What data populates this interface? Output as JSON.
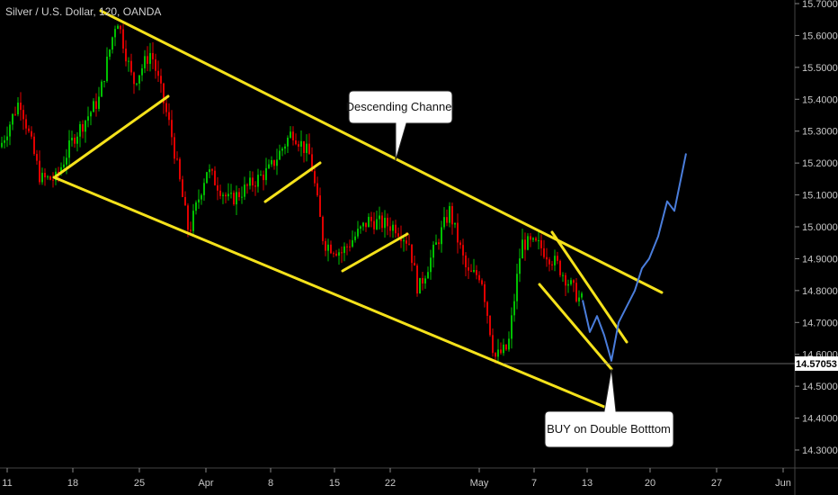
{
  "header": {
    "symbol": "Silver / U.S. Dollar, 120, OANDA"
  },
  "chart_data": {
    "type": "candlestick",
    "title": "Silver / U.S. Dollar, 120, OANDA",
    "y_axis_ticks": [
      "15.70000",
      "15.60000",
      "15.50000",
      "15.40000",
      "15.30000",
      "15.20000",
      "15.10000",
      "15.00000",
      "14.90000",
      "14.80000",
      "14.70000",
      "14.60000",
      "14.50000",
      "14.40000",
      "14.30000"
    ],
    "ylim": [
      14.26,
      15.73
    ],
    "x_axis_ticks": [
      "11",
      "18",
      "25",
      "Apr",
      "8",
      "15",
      "22",
      "May",
      "7",
      "13",
      "20",
      "27",
      "Jun"
    ],
    "current_price": "14.57053",
    "price_path": [
      {
        "x": "11",
        "y": 15.25
      },
      {
        "x": "13",
        "y": 15.4
      },
      {
        "x": "15",
        "y": 15.15
      },
      {
        "x": "18",
        "y": 15.28
      },
      {
        "x": "21",
        "y": 15.4
      },
      {
        "x": "23",
        "y": 15.66
      },
      {
        "x": "25",
        "y": 15.45
      },
      {
        "x": "27",
        "y": 15.55
      },
      {
        "x": "29",
        "y": 15.3
      },
      {
        "x": "Apr",
        "y": 14.98
      },
      {
        "x": "3",
        "y": 15.18
      },
      {
        "x": "5",
        "y": 15.08
      },
      {
        "x": "8",
        "y": 15.18
      },
      {
        "x": "10",
        "y": 15.3
      },
      {
        "x": "12",
        "y": 15.22
      },
      {
        "x": "15",
        "y": 14.95
      },
      {
        "x": "17",
        "y": 14.92
      },
      {
        "x": "20",
        "y": 15.02
      },
      {
        "x": "22",
        "y": 15.0
      },
      {
        "x": "24",
        "y": 14.95
      },
      {
        "x": "25",
        "y": 14.8
      },
      {
        "x": "27",
        "y": 15.05
      },
      {
        "x": "29",
        "y": 14.85
      },
      {
        "x": "May",
        "y": 14.85
      },
      {
        "x": "3",
        "y": 14.59
      },
      {
        "x": "5",
        "y": 14.62
      },
      {
        "x": "7",
        "y": 14.95
      },
      {
        "x": "9",
        "y": 14.94
      },
      {
        "x": "11",
        "y": 14.85
      },
      {
        "x": "13",
        "y": 14.77
      }
    ],
    "projection": [
      14.77,
      14.67,
      14.72,
      14.66,
      14.58,
      14.7,
      14.75,
      14.8,
      14.87,
      14.9,
      14.97,
      15.08,
      15.05,
      15.23
    ],
    "trendlines": [
      {
        "name": "channel-top",
        "from": [
          "23",
          15.67
        ],
        "to": [
          "20",
          14.79
        ]
      },
      {
        "name": "channel-bottom",
        "from": [
          "16",
          15.15
        ],
        "to": [
          "16",
          14.44
        ]
      }
    ],
    "annotations": [
      {
        "text": "Descending Channel"
      },
      {
        "text": "BUY on Double Botttom"
      }
    ],
    "colors": {
      "up": "#00c000",
      "down": "#e00000",
      "trendline": "#f5e21b",
      "projection": "#4a7ddb",
      "background": "#000000"
    }
  }
}
